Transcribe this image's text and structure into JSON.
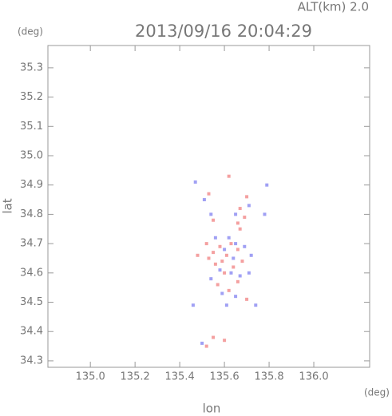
{
  "chart_data": {
    "type": "scatter",
    "title": "2013/09/16 20:04:29",
    "subtitle": "ALT(km) 2.0",
    "y_unit": "(deg)",
    "x_unit": "(deg)",
    "x_label": "lon",
    "y_label": "lat",
    "xlim": [
      134.81,
      136.25
    ],
    "ylim": [
      34.278,
      35.376
    ],
    "xticks": [
      {
        "value": 135,
        "label": "135.0"
      },
      135.2,
      135.4,
      135.6,
      135.8,
      {
        "value": 136,
        "label": "136.0"
      }
    ],
    "yticks": [
      34.3,
      34.4,
      34.5,
      34.6,
      34.7,
      34.8,
      34.9,
      {
        "value": 35,
        "label": "35.0"
      },
      35.1,
      35.2,
      35.3
    ],
    "series": [
      {
        "color": "#f08080",
        "x": [
          135.62,
          135.53,
          135.55,
          135.67,
          135.69,
          135.66,
          135.7,
          135.52,
          135.55,
          135.58,
          135.61,
          135.56,
          135.6,
          135.64,
          135.66,
          135.68,
          135.53,
          135.57,
          135.62,
          135.66,
          135.7,
          135.55,
          135.6,
          135.52,
          135.48,
          135.63,
          135.59,
          135.67
        ],
        "y": [
          34.93,
          34.87,
          34.78,
          34.82,
          34.79,
          34.77,
          34.86,
          34.7,
          34.67,
          34.69,
          34.66,
          34.63,
          34.6,
          34.62,
          34.68,
          34.64,
          34.65,
          34.56,
          34.54,
          34.57,
          34.51,
          34.38,
          34.37,
          34.35,
          34.66,
          34.7,
          34.64,
          34.75
        ]
      },
      {
        "color": "#8080f0",
        "x": [
          135.47,
          135.51,
          135.54,
          135.71,
          135.78,
          135.65,
          135.56,
          135.62,
          135.65,
          135.69,
          135.72,
          135.58,
          135.63,
          135.67,
          135.71,
          135.54,
          135.59,
          135.65,
          135.74,
          135.61,
          135.46,
          135.5,
          135.79,
          135.64,
          135.6
        ],
        "y": [
          34.91,
          34.85,
          34.8,
          34.83,
          34.8,
          34.8,
          34.72,
          34.72,
          34.7,
          34.69,
          34.66,
          34.61,
          34.6,
          34.59,
          34.6,
          34.58,
          34.53,
          34.52,
          34.49,
          34.49,
          34.49,
          34.36,
          34.9,
          34.65,
          34.68
        ]
      }
    ]
  }
}
